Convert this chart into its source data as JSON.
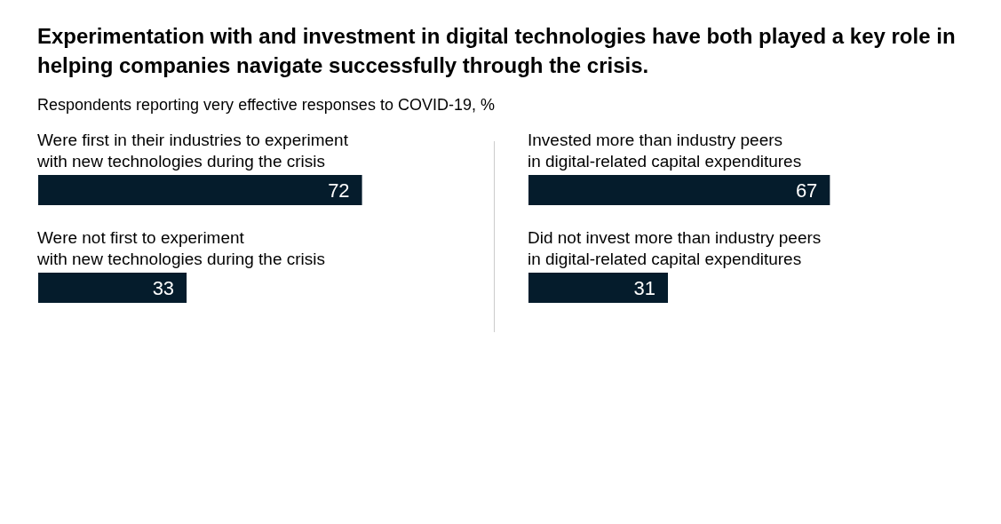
{
  "chart_data": [
    {
      "type": "bar",
      "orientation": "horizontal",
      "title": "Experimentation with and investment in digital technologies have both played a key role in helping companies navigate successfully through the crisis.",
      "subtitle": "Respondents reporting very effective responses to COVID-19, %",
      "categories": [
        "Were first in their industries to experiment\nwith new technologies during the crisis",
        "Were not first to experiment\nwith new technologies during the crisis"
      ],
      "values": [
        72,
        33
      ],
      "color": "#051c2c",
      "data_labels": true
    },
    {
      "type": "bar",
      "orientation": "horizontal",
      "categories": [
        "Invested more than industry peers\nin digital-related capital expenditures",
        "Did not invest more than industry peers\nin digital-related capital expenditures"
      ],
      "values": [
        67,
        31
      ],
      "color": "#051c2c",
      "data_labels": true
    }
  ]
}
